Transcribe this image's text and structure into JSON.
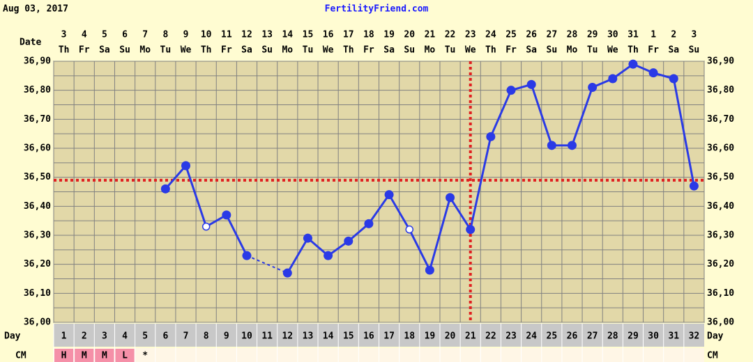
{
  "chart_data": {
    "type": "line",
    "title": "FertilityFriend.com",
    "date_label": "Aug 03, 2017",
    "date_row_label": "Date",
    "day_row_label": "Day",
    "cm_label": "CM",
    "categories": [
      1,
      2,
      3,
      4,
      5,
      6,
      7,
      8,
      9,
      10,
      11,
      12,
      13,
      14,
      15,
      16,
      17,
      18,
      19,
      20,
      21,
      22,
      23,
      24,
      25,
      26,
      27,
      28,
      29,
      30,
      31,
      32
    ],
    "dates": [
      3,
      4,
      5,
      6,
      7,
      8,
      9,
      10,
      11,
      12,
      13,
      14,
      15,
      16,
      17,
      18,
      19,
      20,
      21,
      22,
      23,
      24,
      25,
      26,
      27,
      28,
      29,
      30,
      31,
      1,
      2,
      3
    ],
    "weekdays": [
      "Th",
      "Fr",
      "Sa",
      "Su",
      "Mo",
      "Tu",
      "We",
      "Th",
      "Fr",
      "Sa",
      "Su",
      "Mo",
      "Tu",
      "We",
      "Th",
      "Fr",
      "Sa",
      "Su",
      "Mo",
      "Tu",
      "We",
      "Th",
      "Fr",
      "Sa",
      "Su",
      "Mo",
      "Tu",
      "We",
      "Th",
      "Fr",
      "Sa",
      "Su"
    ],
    "cm": [
      "H",
      "M",
      "M",
      "L",
      "*",
      null,
      null,
      null,
      null,
      null,
      null,
      null,
      null,
      null,
      null,
      null,
      null,
      null,
      null,
      null,
      null,
      null,
      null,
      null,
      null,
      null,
      null,
      null,
      null,
      null,
      null,
      null
    ],
    "values": [
      null,
      null,
      null,
      null,
      null,
      36.46,
      36.54,
      36.33,
      36.37,
      36.23,
      null,
      36.17,
      36.29,
      36.23,
      36.28,
      36.34,
      36.44,
      36.32,
      36.18,
      36.43,
      36.32,
      36.64,
      36.8,
      36.82,
      36.61,
      36.61,
      36.81,
      36.84,
      36.89,
      36.86,
      36.84,
      36.47
    ],
    "open_points": [
      8,
      18
    ],
    "bridge_gaps": "dashed",
    "color": "#2a3ae6",
    "coverline": 36.49,
    "ovulation_day": 21,
    "marker_line_color": "#e02020",
    "cm_highlight_color": "#f590a8",
    "ylim": [
      36.0,
      36.9
    ],
    "yticks": [
      {
        "value": 36.0,
        "label": "36,00"
      },
      {
        "value": 36.1,
        "label": "36,10"
      },
      {
        "value": 36.2,
        "label": "36,20"
      },
      {
        "value": 36.3,
        "label": "36,30"
      },
      {
        "value": 36.4,
        "label": "36,40"
      },
      {
        "value": 36.5,
        "label": "36,50"
      },
      {
        "value": 36.6,
        "label": "36,60"
      },
      {
        "value": 36.7,
        "label": "36,70"
      },
      {
        "value": 36.8,
        "label": "36,80"
      },
      {
        "value": 36.9,
        "label": "36,90"
      }
    ],
    "minor_yticks": [
      36.05,
      36.15,
      36.25,
      36.35,
      36.45,
      36.55,
      36.65,
      36.75,
      36.85
    ],
    "grid": true
  }
}
